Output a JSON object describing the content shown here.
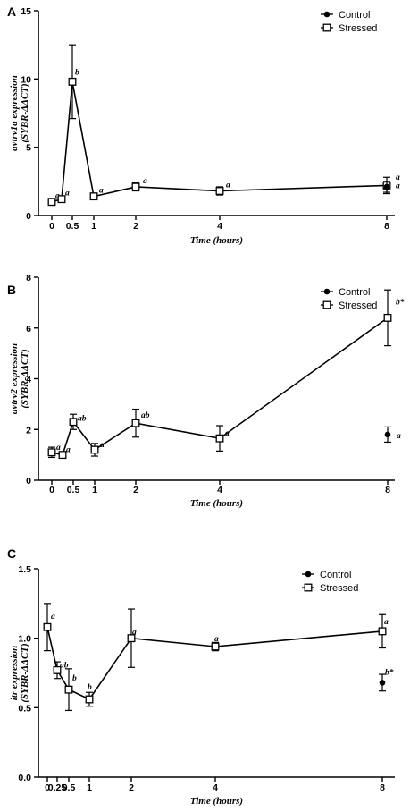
{
  "chart_data": [
    {
      "type": "line",
      "panel": "A",
      "ylabel_line1": "avtrv1a expression",
      "ylabel_line2": "(SYBR-ΔΔCT)",
      "xlabel": "Time (hours)",
      "ylim": [
        0,
        15
      ],
      "yticks": [
        "0",
        "5",
        "10",
        "15"
      ],
      "xticks": [
        {
          "v": 0,
          "label": "0"
        },
        {
          "v": 0.5,
          "label": "0.5"
        },
        {
          "v": 1,
          "label": "1"
        },
        {
          "v": 2,
          "label": "2"
        },
        {
          "v": 4,
          "label": "4"
        },
        {
          "v": 8,
          "label": "8"
        }
      ],
      "legend": [
        "Control",
        "Stressed"
      ],
      "legend_position": "top-right",
      "series": [
        {
          "name": "Stressed",
          "x": [
            0,
            0.25,
            0.5,
            1,
            2,
            4,
            8
          ],
          "y": [
            1.0,
            1.2,
            9.8,
            1.4,
            2.1,
            1.8,
            2.2
          ],
          "err": [
            0.05,
            0.1,
            2.7,
            0.1,
            0.3,
            0.3,
            0.6
          ],
          "labels": [
            "a",
            "a",
            "b",
            "a",
            "a",
            "a",
            "a"
          ]
        },
        {
          "name": "Control",
          "x": [
            8
          ],
          "y": [
            2.1
          ],
          "err": [
            0.4
          ],
          "labels": [
            "a"
          ]
        }
      ]
    },
    {
      "type": "line",
      "panel": "B",
      "ylabel_line1": "avtrv2 expression",
      "ylabel_line2": "(SYBR-ΔΔCT)",
      "xlabel": "Time (hours)",
      "ylim": [
        0,
        8
      ],
      "yticks": [
        "0",
        "2",
        "4",
        "6",
        "8"
      ],
      "xticks": [
        {
          "v": 0,
          "label": "0"
        },
        {
          "v": 0.5,
          "label": "0.5"
        },
        {
          "v": 1,
          "label": "1"
        },
        {
          "v": 2,
          "label": "2"
        },
        {
          "v": 4,
          "label": "4"
        },
        {
          "v": 8,
          "label": "8"
        }
      ],
      "legend": [
        "Control",
        "Stressed"
      ],
      "legend_position": "top-right",
      "series": [
        {
          "name": "Stressed",
          "x": [
            0,
            0.25,
            0.5,
            1,
            2,
            4,
            8
          ],
          "y": [
            1.1,
            1.0,
            2.3,
            1.2,
            2.25,
            1.65,
            6.4
          ],
          "err": [
            0.2,
            0.1,
            0.3,
            0.25,
            0.55,
            0.5,
            1.1
          ],
          "labels": [
            "a",
            "a",
            "ab",
            "a",
            "ab",
            "a",
            "b*"
          ]
        },
        {
          "name": "Control",
          "x": [
            8
          ],
          "y": [
            1.8
          ],
          "err": [
            0.3
          ],
          "labels": [
            "a"
          ]
        }
      ]
    },
    {
      "type": "line",
      "panel": "C",
      "ylabel_line1": "itr expression",
      "ylabel_line2": "(SYBR-ΔΔCT)",
      "xlabel": "Time (hours)",
      "ylim": [
        0,
        1.5
      ],
      "yticks": [
        "0.0",
        "0.5",
        "1.0",
        "1.5"
      ],
      "xticks": [
        {
          "v": 0,
          "label": "0"
        },
        {
          "v": 0.25,
          "label": "0.25"
        },
        {
          "v": 0.5,
          "label": "0.5"
        },
        {
          "v": 1,
          "label": "1"
        },
        {
          "v": 2,
          "label": "2"
        },
        {
          "v": 4,
          "label": "4"
        },
        {
          "v": 8,
          "label": "8"
        }
      ],
      "legend": [
        "Control",
        "Stressed"
      ],
      "legend_position": "top-right",
      "series": [
        {
          "name": "Stressed",
          "x": [
            0,
            0.25,
            0.5,
            1,
            2,
            4,
            8
          ],
          "y": [
            1.08,
            0.77,
            0.63,
            0.56,
            1.0,
            0.94,
            1.05
          ],
          "err": [
            0.17,
            0.06,
            0.15,
            0.05,
            0.21,
            0.03,
            0.12
          ],
          "labels": [
            "a",
            "ab",
            "b",
            "b",
            "a",
            "a",
            "a"
          ]
        },
        {
          "name": "Control",
          "x": [
            8
          ],
          "y": [
            0.68
          ],
          "err": [
            0.06
          ],
          "labels": [
            "b*"
          ]
        }
      ]
    }
  ]
}
